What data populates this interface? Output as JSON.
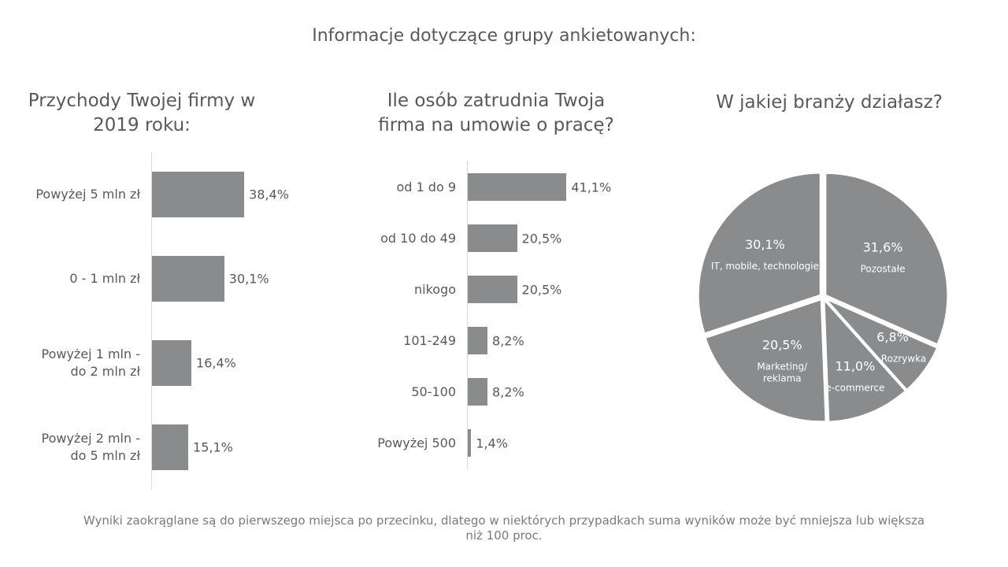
{
  "title": "Informacje dotyczące grupy ankietowanych:",
  "chart_data": [
    {
      "type": "barh",
      "title": "Przychody Twojej firmy w\n2019 roku:",
      "color": "#8a8b8d",
      "categories": [
        "Powyżej 5 mln zł",
        "0 - 1 mln zł",
        "Powyżej 1 mln -\ndo 2 mln zł",
        "Powyżej 2 mln -\ndo 5 mln zł"
      ],
      "values": [
        38.4,
        30.1,
        16.4,
        15.1
      ],
      "value_labels": [
        "38,4%",
        "30,1%",
        "16,4%",
        "15,1%"
      ]
    },
    {
      "type": "barh",
      "title": "Ile osób zatrudnia Twoja\nfirma na umowie o pracę?",
      "color": "#8a8b8d",
      "categories": [
        "od 1 do 9",
        "od 10 do 49",
        "nikogo",
        "101-249",
        "50-100",
        "Powyżej 500"
      ],
      "values": [
        41.1,
        20.5,
        20.5,
        8.2,
        8.2,
        1.4
      ],
      "value_labels": [
        "41,1%",
        "20,5%",
        "20,5%",
        "8,2%",
        "8,2%",
        "1,4%"
      ]
    },
    {
      "type": "pie",
      "title": "W jakiej branży działasz?",
      "color": "#8a8b8d",
      "categories": [
        "Pozostałe",
        "Rozrywka",
        "e-commerce",
        "Marketing/\nreklama",
        "IT, mobile, technologie"
      ],
      "values": [
        31.6,
        6.8,
        11.0,
        20.5,
        30.1
      ],
      "value_labels": [
        "31,6%",
        "6,8%",
        "11,0%",
        "20,5%",
        "30,1%"
      ]
    }
  ],
  "footnote": "Wyniki zaokrąglane są do pierwszego miejsca po przecinku, dlatego w niektórych przypadkach suma wyników może być mniejsza lub większa niż 100 proc."
}
